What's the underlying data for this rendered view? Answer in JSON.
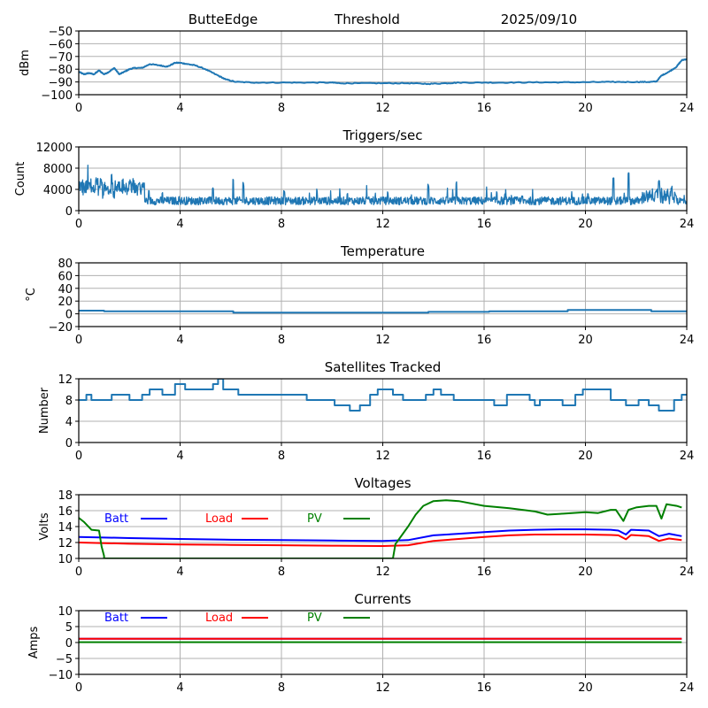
{
  "header": {
    "station": "ButteEdge",
    "mode": "Threshold",
    "date": "2025/09/10"
  },
  "chart_data": [
    {
      "id": "threshold",
      "type": "line",
      "title": "",
      "xlabel": "",
      "ylabel": "dBm",
      "xlim": [
        0,
        24
      ],
      "ylim": [
        -100,
        -50
      ],
      "xticks": [
        "0",
        "4",
        "8",
        "12",
        "16",
        "20",
        "24"
      ],
      "yticks": [
        "−50",
        "−60",
        "−70",
        "−80",
        "−90",
        "−100"
      ],
      "ytick_values": [
        -50,
        -60,
        -70,
        -80,
        -90,
        -100
      ],
      "grid": true,
      "series": [
        {
          "name": "Threshold",
          "color": "#1f77b4",
          "x": [
            0,
            0.2,
            0.4,
            0.6,
            0.8,
            1.0,
            1.2,
            1.4,
            1.6,
            1.8,
            2.0,
            2.2,
            2.5,
            2.8,
            3.2,
            3.5,
            3.8,
            4.0,
            4.3,
            4.6,
            5.0,
            5.4,
            5.8,
            6.2,
            7,
            8,
            9,
            10,
            10.3,
            11,
            12,
            13,
            13.8,
            14.5,
            15,
            16,
            17,
            18,
            19,
            20,
            21,
            22,
            22.5,
            22.8,
            23.0,
            23.3,
            23.6,
            23.8,
            24
          ],
          "y": [
            -82,
            -84,
            -83,
            -84,
            -81,
            -84,
            -82,
            -79,
            -84,
            -82,
            -80,
            -79,
            -79,
            -76,
            -77,
            -78,
            -75,
            -75,
            -76,
            -77,
            -80,
            -84,
            -88,
            -90,
            -90.5,
            -90.5,
            -90.5,
            -90.5,
            -91,
            -91,
            -91,
            -91,
            -91.5,
            -91,
            -90.5,
            -90.5,
            -90.5,
            -90.3,
            -90.3,
            -90.2,
            -90,
            -90,
            -90,
            -89.7,
            -85,
            -82,
            -78,
            -73,
            -72
          ]
        }
      ]
    },
    {
      "id": "triggers",
      "type": "line",
      "title": "Triggers/sec",
      "xlabel": "",
      "ylabel": "Count",
      "xlim": [
        0,
        24
      ],
      "ylim": [
        0,
        12000
      ],
      "xticks": [
        "0",
        "4",
        "8",
        "12",
        "16",
        "20",
        "24"
      ],
      "yticks": [
        "12000",
        "8000",
        "4000",
        "0"
      ],
      "ytick_values": [
        12000,
        8000,
        4000,
        0
      ],
      "grid": true,
      "series": [
        {
          "name": "Triggers",
          "color": "#1f77b4",
          "baseline": 2000,
          "peaks": [
            [
              0.2,
              5500
            ],
            [
              0.7,
              6800
            ],
            [
              1.3,
              7000
            ],
            [
              1.6,
              5800
            ],
            [
              2.0,
              5500
            ],
            [
              3.3,
              3500
            ],
            [
              5.3,
              4500
            ],
            [
              6.1,
              6500
            ],
            [
              6.5,
              5400
            ],
            [
              8.1,
              3800
            ],
            [
              9.4,
              4100
            ],
            [
              10.6,
              3300
            ],
            [
              12.2,
              3600
            ],
            [
              13.8,
              5000
            ],
            [
              14.9,
              5500
            ],
            [
              16.5,
              3700
            ],
            [
              17.5,
              2900
            ],
            [
              20.1,
              3200
            ],
            [
              21.1,
              6400
            ],
            [
              21.7,
              7600
            ],
            [
              22.9,
              5800
            ],
            [
              23.4,
              4800
            ]
          ]
        }
      ]
    },
    {
      "id": "temperature",
      "type": "line",
      "title": "Temperature",
      "xlabel": "",
      "ylabel": "°C",
      "xlim": [
        0,
        24
      ],
      "ylim": [
        -20,
        80
      ],
      "xticks": [
        "0",
        "4",
        "8",
        "12",
        "16",
        "20",
        "24"
      ],
      "yticks": [
        "80",
        "60",
        "40",
        "20",
        "0",
        "−20"
      ],
      "ytick_values": [
        80,
        60,
        40,
        20,
        0,
        -20
      ],
      "grid": true,
      "series": [
        {
          "name": "Temperature",
          "color": "#1f77b4",
          "x": [
            0,
            1.0,
            1.0,
            6.1,
            6.1,
            13.8,
            13.8,
            16.2,
            16.2,
            19.3,
            19.3,
            22.6,
            22.6,
            24
          ],
          "y": [
            5,
            5,
            4,
            4,
            2,
            2,
            3,
            3,
            4,
            4,
            6,
            6,
            4,
            4
          ]
        }
      ]
    },
    {
      "id": "satellites",
      "type": "line",
      "title": "Satellites Tracked",
      "xlabel": "",
      "ylabel": "Number",
      "xlim": [
        0,
        24
      ],
      "ylim": [
        0,
        12
      ],
      "xticks": [
        "0",
        "4",
        "8",
        "12",
        "16",
        "20",
        "24"
      ],
      "yticks": [
        "12",
        "8",
        "4",
        "0"
      ],
      "ytick_values": [
        12,
        8,
        4,
        0
      ],
      "grid": true,
      "series": [
        {
          "name": "Satellites",
          "color": "#1f77b4",
          "x": [
            0,
            0.3,
            0.3,
            0.5,
            0.5,
            1.3,
            1.3,
            2.0,
            2.0,
            2.5,
            2.5,
            2.8,
            2.8,
            3.3,
            3.3,
            3.8,
            3.8,
            4.2,
            4.2,
            5.3,
            5.3,
            5.5,
            5.5,
            5.7,
            5.7,
            6.3,
            6.3,
            6.6,
            6.6,
            8.0,
            8.0,
            9.0,
            9.0,
            10.1,
            10.1,
            10.7,
            10.7,
            11.1,
            11.1,
            11.5,
            11.5,
            11.8,
            11.8,
            12.4,
            12.4,
            12.8,
            12.8,
            13.7,
            13.7,
            14.0,
            14.0,
            14.3,
            14.3,
            14.8,
            14.8,
            15.2,
            15.2,
            16.4,
            16.4,
            16.9,
            16.9,
            17.8,
            17.8,
            18.0,
            18.0,
            18.2,
            18.2,
            19.1,
            19.1,
            19.6,
            19.6,
            19.9,
            19.9,
            21.0,
            21.0,
            21.6,
            21.6,
            22.1,
            22.1,
            22.5,
            22.5,
            22.9,
            22.9,
            23.5,
            23.5,
            23.8,
            23.8,
            24
          ],
          "y": [
            8,
            8,
            9,
            9,
            8,
            8,
            9,
            9,
            8,
            8,
            9,
            9,
            10,
            10,
            9,
            9,
            11,
            11,
            10,
            10,
            11,
            11,
            12,
            12,
            10,
            10,
            9,
            9,
            9,
            9,
            9,
            9,
            8,
            8,
            7,
            7,
            6,
            6,
            7,
            7,
            9,
            9,
            10,
            10,
            9,
            9,
            8,
            8,
            9,
            9,
            10,
            10,
            9,
            9,
            8,
            8,
            8,
            8,
            7,
            7,
            9,
            9,
            8,
            8,
            7,
            7,
            8,
            8,
            7,
            7,
            9,
            9,
            10,
            10,
            8,
            8,
            7,
            7,
            8,
            8,
            7,
            7,
            6,
            6,
            8,
            8,
            9,
            9
          ]
        }
      ]
    },
    {
      "id": "voltages",
      "type": "line",
      "title": "Voltages",
      "xlabel": "",
      "ylabel": "Volts",
      "xlim": [
        0,
        24
      ],
      "ylim": [
        10,
        18
      ],
      "xticks": [
        "0",
        "4",
        "8",
        "12",
        "16",
        "20",
        "24"
      ],
      "yticks": [
        "18",
        "16",
        "14",
        "12",
        "10"
      ],
      "ytick_values": [
        18,
        16,
        14,
        12,
        10
      ],
      "grid": true,
      "legend": {
        "placement": "top-left",
        "entries": [
          "Batt",
          "Load",
          "PV"
        ]
      },
      "series": [
        {
          "name": "Batt",
          "color": "#0000ff",
          "x": [
            0,
            2,
            4,
            6,
            8,
            10,
            12,
            13,
            14,
            15,
            16,
            17,
            18,
            19,
            20,
            21,
            21.3,
            21.6,
            21.8,
            22.5,
            22.9,
            23.3,
            23.8
          ],
          "y": [
            12.7,
            12.55,
            12.45,
            12.35,
            12.3,
            12.25,
            12.2,
            12.3,
            12.9,
            13.1,
            13.3,
            13.5,
            13.6,
            13.65,
            13.65,
            13.6,
            13.5,
            13.0,
            13.6,
            13.5,
            12.8,
            13.1,
            12.8
          ]
        },
        {
          "name": "Load",
          "color": "#ff0000",
          "x": [
            0,
            2,
            4,
            6,
            8,
            10,
            12,
            13,
            14,
            15,
            16,
            17,
            18,
            19,
            20,
            21,
            21.3,
            21.6,
            21.8,
            22.5,
            22.9,
            23.3,
            23.8
          ],
          "y": [
            12.0,
            11.85,
            11.75,
            11.7,
            11.65,
            11.6,
            11.55,
            11.65,
            12.2,
            12.45,
            12.7,
            12.9,
            13.0,
            13.0,
            13.0,
            12.95,
            12.9,
            12.4,
            12.95,
            12.8,
            12.2,
            12.5,
            12.3
          ]
        },
        {
          "name": "PV",
          "color": "#008000",
          "x": [
            0,
            0.2,
            0.5,
            0.8,
            0.9,
            1.0,
            1.0,
            12.4,
            12.4,
            12.5,
            13.0,
            13.3,
            13.6,
            14.0,
            14.5,
            15.0,
            16.0,
            17.0,
            18.0,
            18.5,
            19.0,
            20.0,
            20.5,
            21.0,
            21.2,
            21.5,
            21.7,
            22.0,
            22.5,
            22.8,
            23.0,
            23.2,
            23.6,
            23.8
          ],
          "y": [
            15.1,
            14.6,
            13.6,
            13.5,
            11.5,
            10.3,
            10,
            10,
            10,
            11.8,
            14.0,
            15.5,
            16.6,
            17.2,
            17.3,
            17.2,
            16.6,
            16.3,
            15.9,
            15.5,
            15.6,
            15.8,
            15.7,
            16.1,
            16.1,
            14.7,
            16.1,
            16.4,
            16.6,
            16.6,
            15.0,
            16.8,
            16.6,
            16.4
          ]
        }
      ]
    },
    {
      "id": "currents",
      "type": "line",
      "title": "Currents",
      "xlabel": "",
      "ylabel": "Amps",
      "xlim": [
        0,
        24
      ],
      "ylim": [
        -10,
        10
      ],
      "xticks": [
        "0",
        "4",
        "8",
        "12",
        "16",
        "20",
        "24"
      ],
      "yticks": [
        "10",
        "5",
        "0",
        "−5",
        "−10"
      ],
      "ytick_values": [
        10,
        5,
        0,
        -5,
        -10
      ],
      "grid": true,
      "legend": {
        "placement": "top-left",
        "entries": [
          "Batt",
          "Load",
          "PV"
        ]
      },
      "series": [
        {
          "name": "Batt",
          "color": "#0000ff",
          "x": [
            0,
            23.8
          ],
          "y": [
            1.2,
            1.2
          ]
        },
        {
          "name": "Load",
          "color": "#ff0000",
          "x": [
            0,
            23.8
          ],
          "y": [
            1.2,
            1.2
          ]
        },
        {
          "name": "PV",
          "color": "#008000",
          "x": [
            0,
            23.8
          ],
          "y": [
            0.1,
            0.1
          ]
        }
      ]
    }
  ]
}
